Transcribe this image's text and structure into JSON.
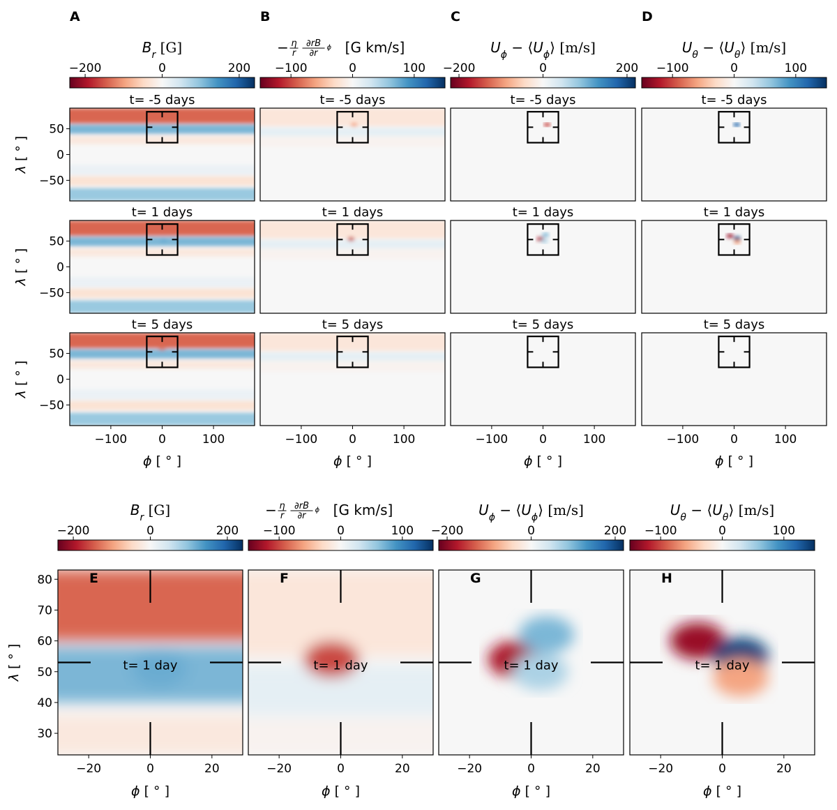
{
  "chart_data": {
    "type": "heatmap",
    "colormap": "RdBu",
    "panel_letters": [
      "A",
      "B",
      "C",
      "D",
      "E",
      "F",
      "G",
      "H"
    ],
    "quantities": [
      {
        "id": "Br",
        "colorbar_label": "B_r [G]",
        "colorbar_range": [
          -240,
          240
        ],
        "colorbar_ticks": [
          -200,
          0,
          200
        ]
      },
      {
        "id": "induction",
        "colorbar_label": "−(η/r) ∂rB_φ/∂r [G km/s]",
        "colorbar_range": [
          -150,
          150
        ],
        "colorbar_ticks": [
          -100,
          0,
          100
        ]
      },
      {
        "id": "Uphi",
        "colorbar_label": "U_φ − ⟨U_φ⟩ [m/s]",
        "colorbar_range": [
          -220,
          220
        ],
        "colorbar_ticks": [
          -200,
          0,
          200
        ]
      },
      {
        "id": "Utheta",
        "colorbar_label": "U_θ − ⟨U_θ⟩ [m/s]",
        "colorbar_range": [
          -150,
          150
        ],
        "colorbar_ticks": [
          -100,
          0,
          100
        ]
      }
    ],
    "times": [
      "t= -5 days",
      "t= 1 days",
      "t= 5 days"
    ],
    "top_grid": {
      "x_axis": {
        "label": "ϕ [ ° ]",
        "range": [
          -180,
          180
        ],
        "ticks": [
          -100,
          0,
          100
        ]
      },
      "y_axis": {
        "label": "λ [ ° ]",
        "range": [
          -90,
          90
        ],
        "ticks": [
          -50,
          0,
          50
        ]
      },
      "zoom_box": {
        "phi": [
          -30,
          30
        ],
        "lambda": [
          23,
          83
        ],
        "center": [
          0,
          53
        ]
      }
    },
    "zoom_row": {
      "time_label": "t= 1 day",
      "x_axis": {
        "label": "ϕ [ ° ]",
        "range": [
          -30,
          30
        ],
        "ticks": [
          -20,
          0,
          20
        ]
      },
      "y_axis": {
        "label": "λ [ ° ]",
        "range": [
          23,
          83
        ],
        "ticks": [
          30,
          40,
          50,
          60,
          70,
          80
        ]
      },
      "crosshair_center": [
        0,
        53
      ]
    },
    "features": {
      "Br": [
        {
          "type": "band",
          "lat": [
            60,
            90
          ],
          "value": -140
        },
        {
          "type": "band",
          "lat": [
            40,
            58
          ],
          "value": 110
        },
        {
          "type": "band",
          "lat": [
            20,
            36
          ],
          "value": -25
        },
        {
          "type": "band",
          "lat": [
            -40,
            -20
          ],
          "value": 15
        },
        {
          "type": "band",
          "lat": [
            -60,
            -42
          ],
          "value": -35
        },
        {
          "type": "band",
          "lat": [
            -90,
            -65
          ],
          "value": 90
        },
        {
          "type": "blob",
          "phi": 3,
          "lat": 51,
          "value": 120,
          "time_index": 1
        },
        {
          "type": "blob",
          "phi": 0,
          "lat": 60,
          "value": -130,
          "time_index": 2
        }
      ],
      "induction": [
        {
          "type": "band",
          "lat": [
            55,
            90
          ],
          "value": -18
        },
        {
          "type": "band",
          "lat": [
            36,
            52
          ],
          "value": 14
        },
        {
          "type": "band",
          "lat": [
            15,
            35
          ],
          "value": -5
        },
        {
          "type": "blob",
          "phi": -3,
          "lat": 54,
          "value": -100,
          "time_index": 1
        },
        {
          "type": "blob",
          "phi": 3,
          "lat": 58,
          "value": -60,
          "time_index": 0
        }
      ],
      "Uphi": [
        {
          "type": "blob",
          "phi": -5,
          "lat": 54,
          "value": -180,
          "time_index": 1
        },
        {
          "type": "blob",
          "phi": 5,
          "lat": 62,
          "value": 100,
          "time_index": 1
        },
        {
          "type": "blob",
          "phi": 3,
          "lat": 50,
          "value": 70,
          "time_index": 1
        },
        {
          "type": "blob",
          "phi": 8,
          "lat": 58,
          "value": -150,
          "time_index": 0
        }
      ],
      "Utheta": [
        {
          "type": "blob",
          "phi": -8,
          "lat": 60,
          "value": -130,
          "time_index": 1
        },
        {
          "type": "blob",
          "phi": 6,
          "lat": 55,
          "value": 140,
          "time_index": 1
        },
        {
          "type": "blob",
          "phi": 6,
          "lat": 48,
          "value": -60,
          "time_index": 1
        },
        {
          "type": "blob",
          "phi": 5,
          "lat": 58,
          "value": 120,
          "time_index": 0
        }
      ]
    }
  }
}
